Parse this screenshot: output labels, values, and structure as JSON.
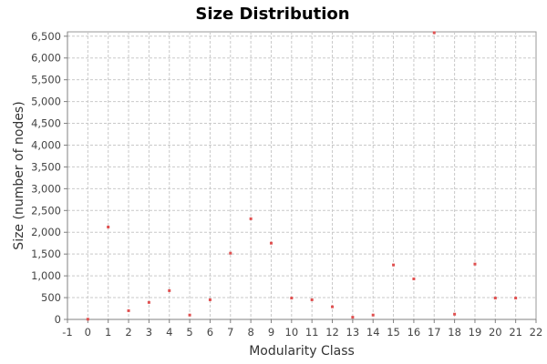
{
  "chart_data": {
    "type": "scatter",
    "title": "Size Distribution",
    "xlabel": "Modularity Class",
    "ylabel": "Size (number of nodes)",
    "xlim": [
      -1,
      22
    ],
    "ylim": [
      0,
      6600
    ],
    "x_ticks": [
      -1,
      0,
      1,
      2,
      3,
      4,
      5,
      6,
      7,
      8,
      9,
      10,
      11,
      12,
      13,
      14,
      15,
      16,
      17,
      18,
      19,
      20,
      21,
      22
    ],
    "y_ticks": [
      0,
      500,
      1000,
      1500,
      2000,
      2500,
      3000,
      3500,
      4000,
      4500,
      5000,
      5500,
      6000,
      6500
    ],
    "x_tick_labels": [
      "-1",
      "0",
      "1",
      "2",
      "3",
      "4",
      "5",
      "6",
      "7",
      "8",
      "9",
      "10",
      "11",
      "12",
      "13",
      "14",
      "15",
      "16",
      "17",
      "18",
      "19",
      "20",
      "21",
      "22"
    ],
    "y_tick_labels": [
      "0",
      "500",
      "1,000",
      "1,500",
      "2,000",
      "2,500",
      "3,000",
      "3,500",
      "4,000",
      "4,500",
      "5,000",
      "5,500",
      "6,000",
      "6,500"
    ],
    "grid": true,
    "legend": "none",
    "marker_color": "#e05050",
    "points": [
      {
        "x": 0,
        "y": 5
      },
      {
        "x": 1,
        "y": 2120
      },
      {
        "x": 2,
        "y": 200
      },
      {
        "x": 3,
        "y": 390
      },
      {
        "x": 4,
        "y": 660
      },
      {
        "x": 5,
        "y": 100
      },
      {
        "x": 6,
        "y": 450
      },
      {
        "x": 7,
        "y": 1520
      },
      {
        "x": 8,
        "y": 2310
      },
      {
        "x": 9,
        "y": 1750
      },
      {
        "x": 10,
        "y": 490
      },
      {
        "x": 11,
        "y": 450
      },
      {
        "x": 12,
        "y": 290
      },
      {
        "x": 13,
        "y": 50
      },
      {
        "x": 14,
        "y": 100
      },
      {
        "x": 15,
        "y": 1250
      },
      {
        "x": 16,
        "y": 930
      },
      {
        "x": 17,
        "y": 6580
      },
      {
        "x": 18,
        "y": 120
      },
      {
        "x": 19,
        "y": 1270
      },
      {
        "x": 20,
        "y": 490
      },
      {
        "x": 21,
        "y": 490
      }
    ]
  }
}
